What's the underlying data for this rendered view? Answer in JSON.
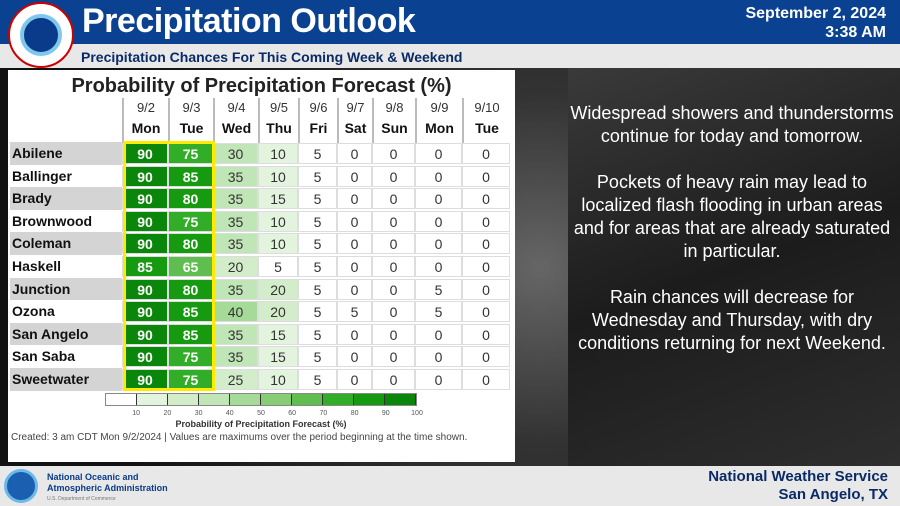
{
  "header": {
    "title": "Precipitation Outlook",
    "subtitle": "Precipitation Chances For This Coming Week & Weekend",
    "date": "September 2, 2024",
    "time": "3:38 AM",
    "logo_text": "NATIONAL WEATHER SERVICE"
  },
  "table": {
    "title": "Probability of Precipitation Forecast (%)",
    "columns": [
      {
        "date": "9/2",
        "day": "Mon"
      },
      {
        "date": "9/3",
        "day": "Tue"
      },
      {
        "date": "9/4",
        "day": "Wed"
      },
      {
        "date": "9/5",
        "day": "Thu"
      },
      {
        "date": "9/6",
        "day": "Fri"
      },
      {
        "date": "9/7",
        "day": "Sat"
      },
      {
        "date": "9/8",
        "day": "Sun"
      },
      {
        "date": "9/9",
        "day": "Mon"
      },
      {
        "date": "9/10",
        "day": "Tue"
      }
    ],
    "rows": [
      {
        "city": "Abilene",
        "values": [
          "90",
          "75",
          "30",
          "10",
          "5",
          "0",
          "0",
          "0",
          "0"
        ]
      },
      {
        "city": "Ballinger",
        "values": [
          "90",
          "85",
          "35",
          "10",
          "5",
          "0",
          "0",
          "0",
          "0"
        ]
      },
      {
        "city": "Brady",
        "values": [
          "90",
          "80",
          "35",
          "15",
          "5",
          "0",
          "0",
          "0",
          "0"
        ]
      },
      {
        "city": "Brownwood",
        "values": [
          "90",
          "75",
          "35",
          "10",
          "5",
          "0",
          "0",
          "0",
          "0"
        ]
      },
      {
        "city": "Coleman",
        "values": [
          "90",
          "80",
          "35",
          "10",
          "5",
          "0",
          "0",
          "0",
          "0"
        ]
      },
      {
        "city": "Haskell",
        "values": [
          "85",
          "65",
          "20",
          "5",
          "5",
          "0",
          "0",
          "0",
          "0"
        ]
      },
      {
        "city": "Junction",
        "values": [
          "90",
          "80",
          "35",
          "20",
          "5",
          "0",
          "0",
          "5",
          "0"
        ]
      },
      {
        "city": "Ozona",
        "values": [
          "90",
          "85",
          "40",
          "20",
          "5",
          "5",
          "0",
          "5",
          "0"
        ]
      },
      {
        "city": "San Angelo",
        "values": [
          "90",
          "85",
          "35",
          "15",
          "5",
          "0",
          "0",
          "0",
          "0"
        ]
      },
      {
        "city": "San Saba",
        "values": [
          "90",
          "75",
          "35",
          "15",
          "5",
          "0",
          "0",
          "0",
          "0"
        ]
      },
      {
        "city": "Sweetwater",
        "values": [
          "90",
          "75",
          "25",
          "10",
          "5",
          "0",
          "0",
          "0",
          "0"
        ]
      }
    ],
    "highlight_color": "#ffea00",
    "legend": {
      "title": "Probability of Precipitation Forecast (%)",
      "ticks": [
        "10",
        "20",
        "30",
        "40",
        "50",
        "60",
        "70",
        "80",
        "90",
        "100"
      ],
      "colors": [
        "#ffffff",
        "#e3f4de",
        "#d3edcb",
        "#c0e5b6",
        "#a5da98",
        "#86cd76",
        "#5fbe4f",
        "#31ad27",
        "#159a10",
        "#0a870a",
        "#057505"
      ]
    },
    "created": "Created: 3 am CDT Mon 9/2/2024  |  Values are maximums over the period beginning at the time shown."
  },
  "discussion": [
    "Widespread showers and thunderstorms continue for today and tomorrow.",
    "Pockets of heavy rain may lead to localized flash flooding in urban areas and for areas that are already saturated in particular.",
    "Rain chances will decrease for Wednesday and Thursday, with dry conditions returning for next Weekend."
  ],
  "footer": {
    "noaa_line1": "National Oceanic and",
    "noaa_line2": "Atmospheric Administration",
    "noaa_line3": "U.S. Department of Commerce",
    "office_line1": "National Weather Service",
    "office_line2": "San Angelo, TX"
  }
}
